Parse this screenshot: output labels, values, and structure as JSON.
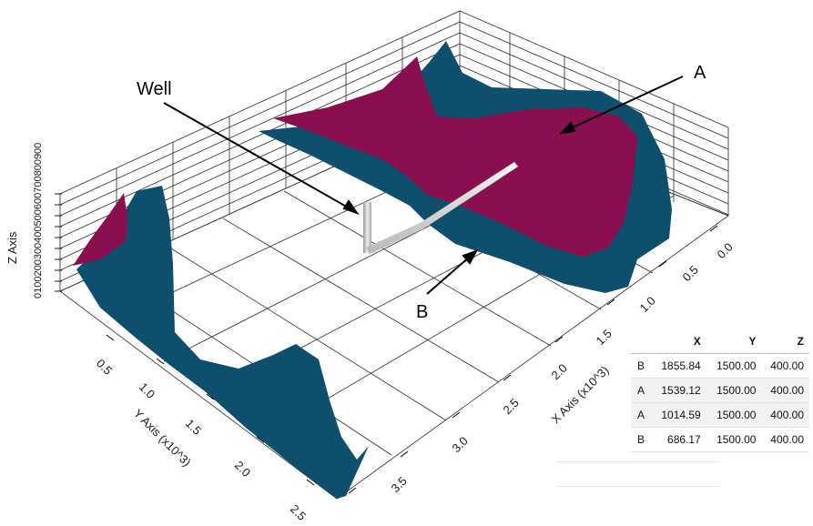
{
  "annotations": {
    "well": "Well",
    "a": "A",
    "b": "B"
  },
  "axes": {
    "z_title": "Z Axis",
    "z_ticks_text": "0100200300400500600700800900",
    "x_title": "X Axis (x10^3)",
    "x_ticks": [
      "0.0",
      "0.5",
      "1.0",
      "1.5",
      "2.0",
      "2.5",
      "3.0",
      "3.5"
    ],
    "y_title": "Y Axis (x10^3)",
    "y_ticks": [
      "0.5",
      "1.0",
      "1.5",
      "2.0",
      "2.5"
    ]
  },
  "colors": {
    "surface_a": "#8a0f4e",
    "surface_b": "#0f4f6e",
    "well": "#cfcfcf",
    "grid": "#2a2a2a"
  },
  "table": {
    "headers": [
      "",
      "X",
      "Y",
      "Z"
    ],
    "rows": [
      {
        "label": "B",
        "x": "1855.84",
        "y": "1500.00",
        "z": "400.00"
      },
      {
        "label": "A",
        "x": "1539.12",
        "y": "1500.00",
        "z": "400.00"
      },
      {
        "label": "A",
        "x": "1014.59",
        "y": "1500.00",
        "z": "400.00"
      },
      {
        "label": "B",
        "x": "686.17",
        "y": "1500.00",
        "z": "400.00"
      }
    ]
  }
}
